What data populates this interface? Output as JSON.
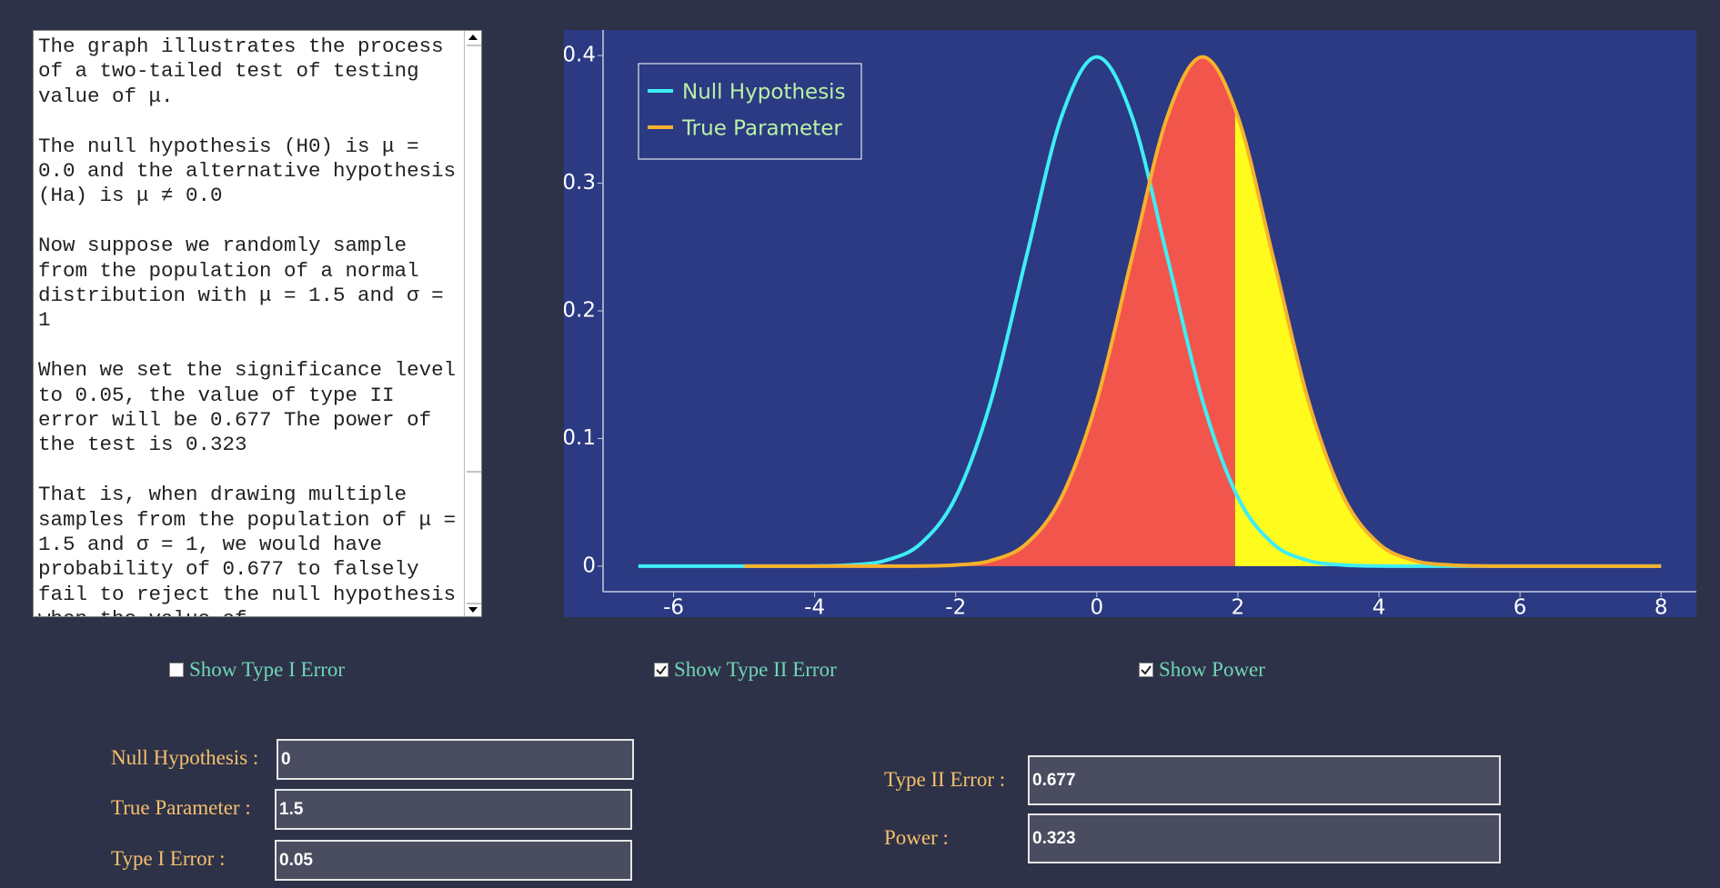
{
  "description": [
    "The graph illustrates the process of a two-tailed test of testing value of μ.",
    "The null hypothesis (H0) is μ = 0.0 and the alternative hypothesis (Ha) is μ ≠ 0.0",
    "Now suppose we randomly sample from the population of a normal distribution with μ = 1.5 and σ = 1",
    "When we set the significance level to 0.05, the value of type II error will be 0.677 The power of the test is 0.323",
    "That is, when drawing multiple samples from the population of μ = 1.5 and σ = 1, we would have probability of 0.677 to falsely fail to reject the null hypothesis when the value of"
  ],
  "chart_data": {
    "type": "line",
    "x": [
      -6.5,
      -6,
      -5.5,
      -5,
      -4.5,
      -4,
      -3.5,
      -3,
      -2.5,
      -2,
      -1.5,
      -1,
      -0.5,
      0,
      0.5,
      1,
      1.5,
      2,
      2.5,
      3,
      3.5,
      4,
      4.5,
      5,
      5.5,
      6,
      6.5,
      7,
      7.5,
      8
    ],
    "series": [
      {
        "name": "Null Hypothesis",
        "color": "#3eeef5",
        "values": [
          0,
          0,
          0,
          0,
          0,
          0.0001,
          0.0009,
          0.0044,
          0.0175,
          0.054,
          0.1295,
          0.242,
          0.3521,
          0.3989,
          0.3521,
          0.242,
          0.1295,
          0.054,
          0.0175,
          0.0044,
          0.0009,
          0.0001,
          0,
          0,
          0,
          0,
          0,
          0,
          0,
          0
        ]
      },
      {
        "name": "True Parameter",
        "color": "#f7b12d",
        "values": [
          null,
          null,
          null,
          0,
          0,
          0,
          0,
          0,
          0.0001,
          0.0009,
          0.0044,
          0.0175,
          0.054,
          0.1295,
          0.242,
          0.3521,
          0.3989,
          0.3521,
          0.242,
          0.1295,
          0.054,
          0.0175,
          0.0044,
          0.0009,
          0.0001,
          0,
          0,
          0,
          0,
          0
        ]
      }
    ],
    "regions": [
      {
        "from": -5,
        "to": 1.96,
        "color": "#f2554b"
      },
      {
        "from": 1.96,
        "to": 8,
        "color": "#fffb1c"
      }
    ],
    "xlim": [
      -7,
      8.5
    ],
    "ylim": [
      -0.02,
      0.42
    ],
    "xticks": [
      -6,
      -4,
      -2,
      0,
      2,
      4,
      6,
      8
    ],
    "yticks": [
      0,
      0.1,
      0.2,
      0.3,
      0.4
    ],
    "grid": false,
    "legend": "upper left"
  },
  "checkboxes": [
    {
      "label": "Show Type I Error",
      "checked": false
    },
    {
      "label": "Show Type II Error",
      "checked": true
    },
    {
      "label": "Show Power",
      "checked": true
    }
  ],
  "fields": [
    {
      "label": "Null Hypothesis :",
      "value": 0
    },
    {
      "label": "True Parameter :",
      "value": 1.5
    },
    {
      "label": "Type I Error :",
      "value": 0.05
    }
  ],
  "results": [
    {
      "label": "Type II Error :",
      "value": 0.677
    },
    {
      "label": "Power :",
      "value": 0.323
    }
  ]
}
